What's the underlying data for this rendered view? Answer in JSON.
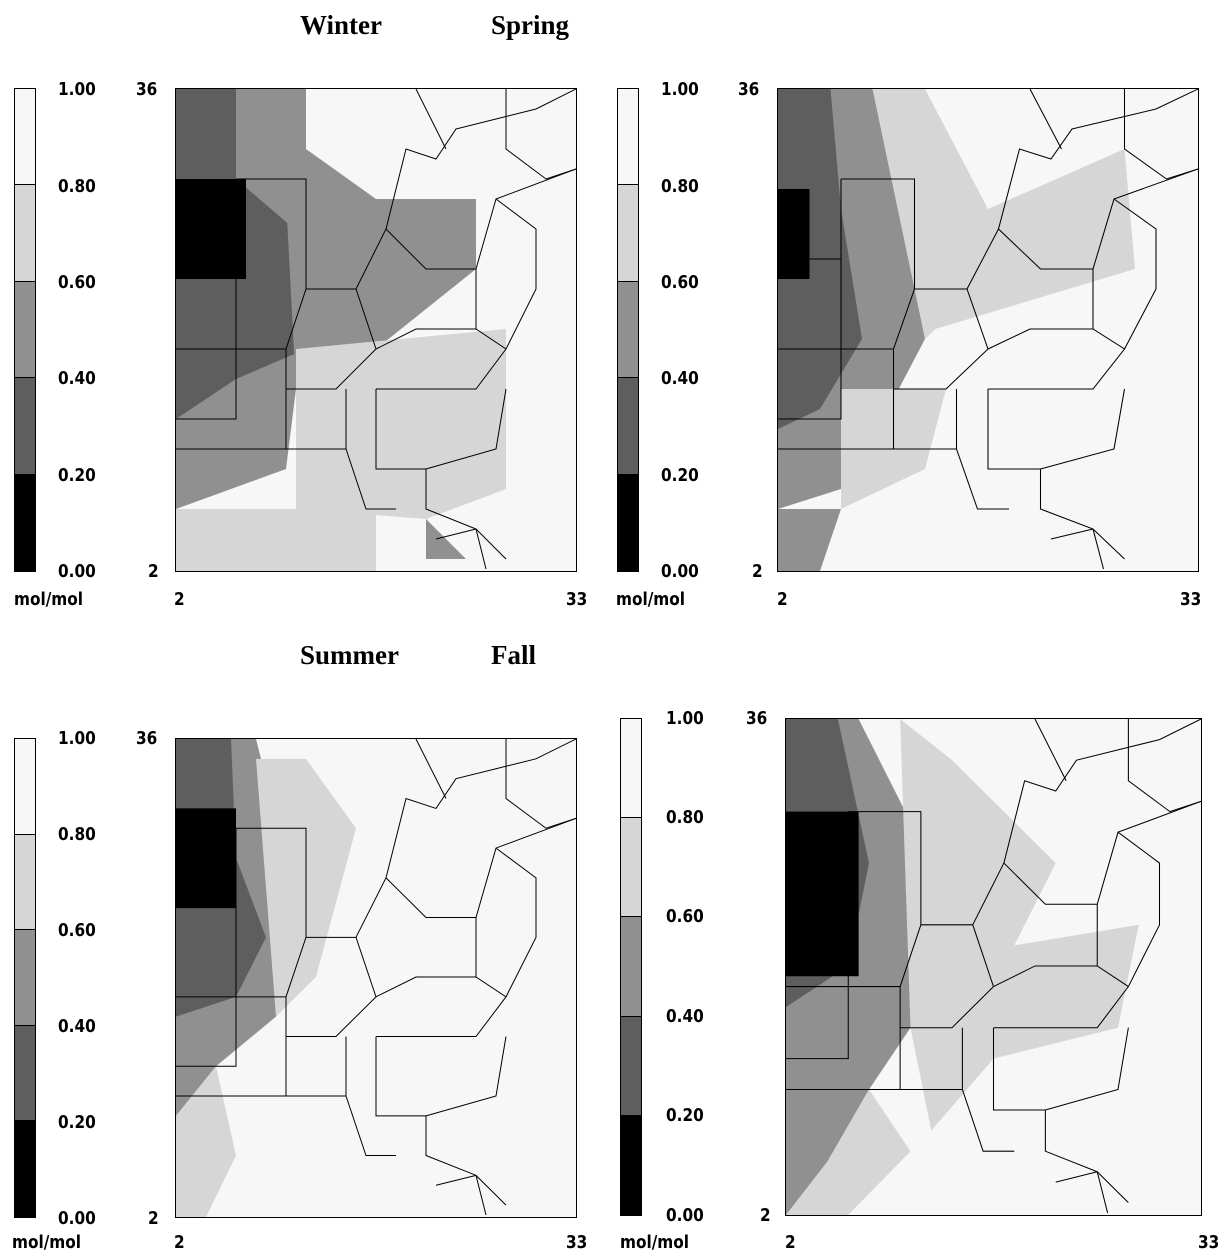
{
  "titles": {
    "winter": "Winter",
    "spring": "Spring",
    "summer": "Summer",
    "fall": "Fall"
  },
  "colorbar": {
    "ticks": [
      "1.00",
      "0.80",
      "0.60",
      "0.40",
      "0.20",
      "0.00"
    ],
    "unit": "mol/mol",
    "colors": [
      "#f7f7f7",
      "#d6d6d6",
      "#909090",
      "#5e5e5e",
      "#000000"
    ]
  },
  "axes": {
    "x_min": "2",
    "x_max": "33",
    "y_min": "2",
    "y_max": "36"
  },
  "panels": [
    {
      "season": "Winter"
    },
    {
      "season": "Spring"
    },
    {
      "season": "Summer"
    },
    {
      "season": "Fall"
    }
  ]
}
